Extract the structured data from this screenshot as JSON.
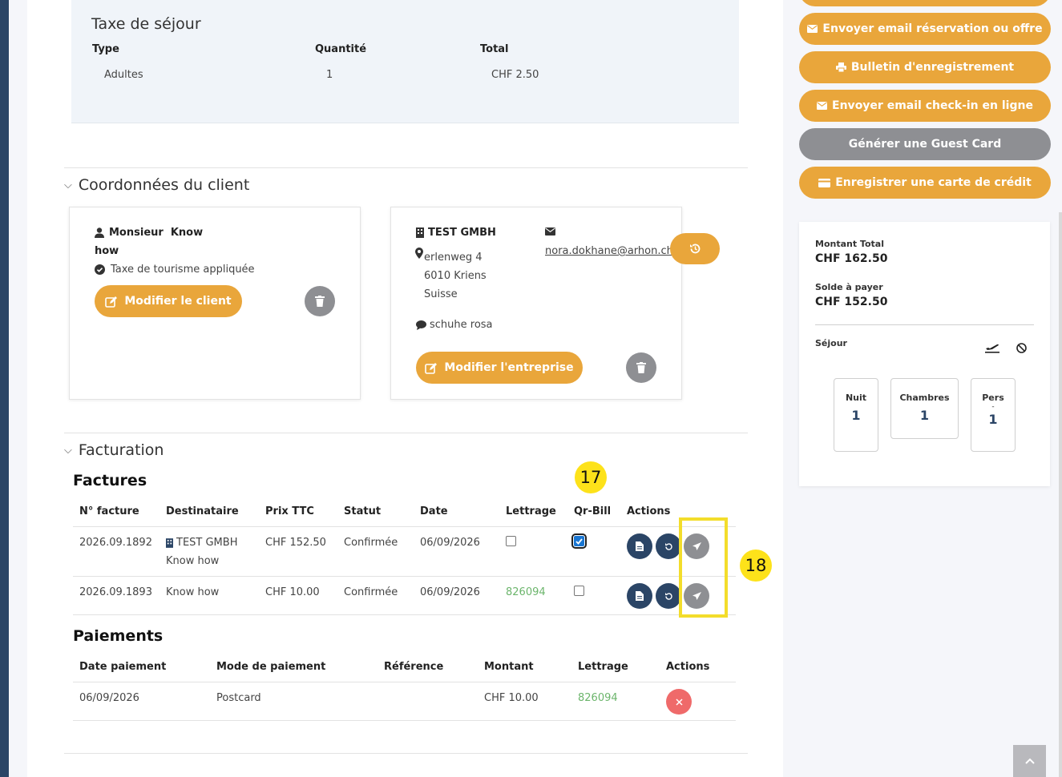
{
  "tax": {
    "title": "Taxe de séjour",
    "headers": {
      "type": "Type",
      "quantity": "Quantité",
      "total": "Total"
    },
    "row": {
      "type": "Adultes",
      "quantity": "1",
      "total": "CHF 2.50"
    }
  },
  "client_section": {
    "title": "Coordonnées du client",
    "person": {
      "first": "Monsieur  Know",
      "last": "how",
      "tax_note": "Taxe de tourisme appliquée",
      "edit_label": "Modifier le client"
    },
    "company": {
      "name": "TEST GMBH",
      "street": "erlenweg 4",
      "city": "6010 Kriens",
      "country": "Suisse",
      "contact": "schuhe rosa",
      "email": "nora.dokhane@arhon.ch",
      "edit_label": "Modifier l'entreprise"
    }
  },
  "billing": {
    "title": "Facturation",
    "invoices_title": "Factures",
    "invoice_headers": [
      "N° facture",
      "Destinataire",
      "Prix TTC",
      "Statut",
      "Date",
      "Lettrage",
      "Qr-Bill",
      "Actions"
    ],
    "invoices": [
      {
        "number": "2026.09.1892",
        "recipient": "TEST GMBH",
        "recipient2": "Know how",
        "price": "CHF 152.50",
        "status": "Confirmée",
        "date": "06/09/2026",
        "lettering": "",
        "qr": true
      },
      {
        "number": "2026.09.1893",
        "recipient": "Know how",
        "recipient2": "",
        "price": "CHF 10.00",
        "status": "Confirmée",
        "date": "06/09/2026",
        "lettering": "826094",
        "qr": false
      }
    ],
    "payments_title": "Paiements",
    "payment_headers": [
      "Date paiement",
      "Mode de paiement",
      "Référence",
      "Montant",
      "Lettrage",
      "Actions"
    ],
    "payments": [
      {
        "date": "06/09/2026",
        "mode": "Postcard",
        "reference": "",
        "amount": "CHF 10.00",
        "lettering": "826094"
      }
    ]
  },
  "annotations": {
    "marker_17": "17",
    "marker_18": "18"
  },
  "sidebar_actions": {
    "email_reservation": "Envoyer email réservation ou offre",
    "registration_form": "Bulletin d'enregistrement",
    "email_checkin": "Envoyer email check-in en ligne",
    "guest_card": "Générer une Guest Card",
    "credit_card": "Enregistrer une carte de crédit"
  },
  "summary": {
    "total_label": "Montant Total",
    "total_value": "CHF 162.50",
    "balance_label": "Solde à payer",
    "balance_value": "CHF 152.50",
    "stay_label": "Séjour",
    "nights_label": "Nuit",
    "nights_value": "1",
    "rooms_label": "Chambres",
    "rooms_value": "1",
    "persons_label": "Pers",
    "persons_sub": "-",
    "persons_value": "1"
  },
  "colors": {
    "accent": "#e9a63b",
    "navy": "#2b4566",
    "grey": "#8e8f93",
    "danger": "#ef6a6a",
    "marker": "#fde21a"
  }
}
